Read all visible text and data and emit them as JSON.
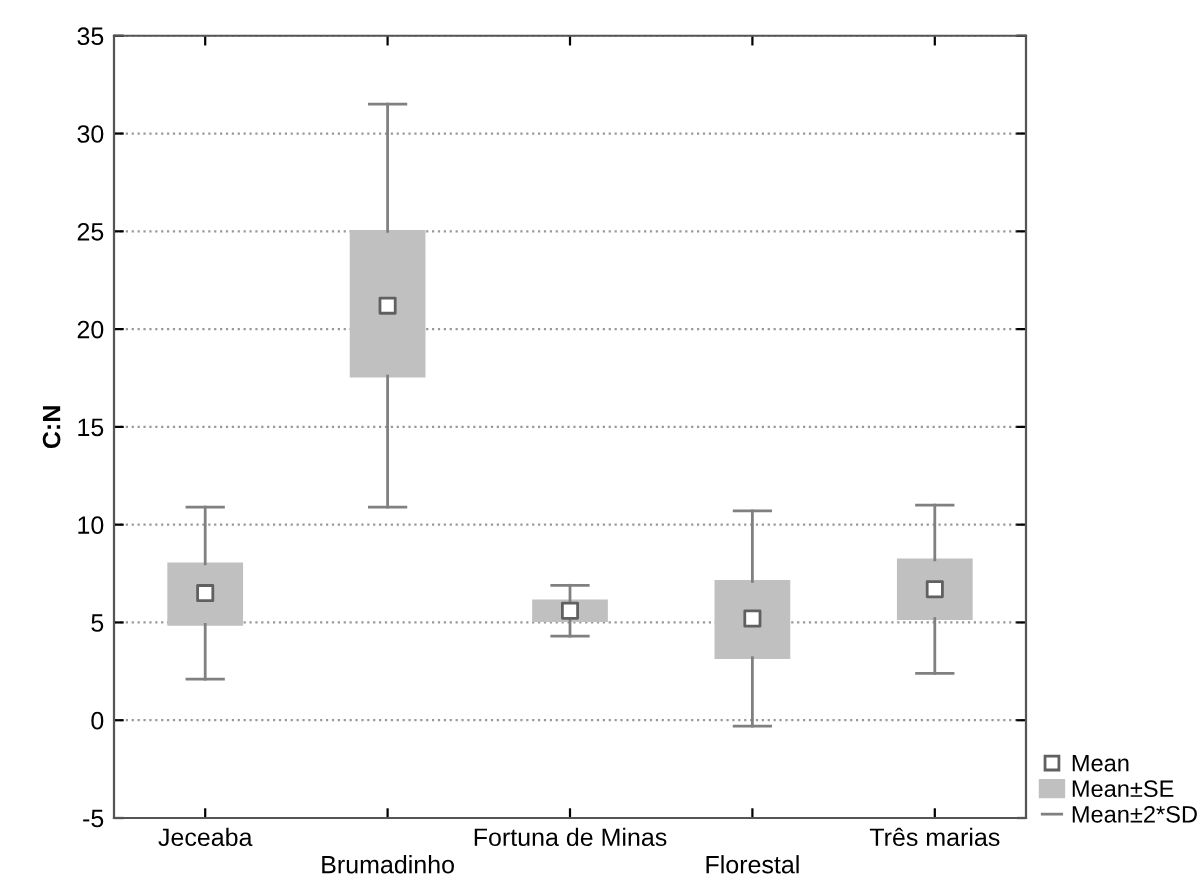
{
  "chart_data": {
    "type": "box",
    "ylabel": "C:N",
    "categories": [
      "Jeceaba",
      "Brumadinho",
      "Fortuna de Minas",
      "Florestal",
      "Três marias"
    ],
    "boxes": [
      {
        "low": 2.1,
        "q1": 4.9,
        "q3": 8.0,
        "high": 10.9,
        "mean": 6.5
      },
      {
        "low": 10.9,
        "q1": 17.6,
        "q3": 25.0,
        "high": 31.5,
        "mean": 21.2
      },
      {
        "low": 4.3,
        "q1": 5.1,
        "q3": 6.1,
        "high": 6.9,
        "mean": 5.6
      },
      {
        "low": -0.3,
        "q1": 3.2,
        "q3": 7.1,
        "high": 10.7,
        "mean": 5.2
      },
      {
        "low": 2.4,
        "q1": 5.2,
        "q3": 8.2,
        "high": 11.0,
        "mean": 6.7
      }
    ],
    "color": "#c0c0c0",
    "ylim": [
      -5,
      35
    ],
    "yticks": [
      -5,
      0,
      5,
      10,
      15,
      20,
      25,
      30,
      35
    ],
    "grid": "y",
    "annotations": [
      "Mean",
      "Mean±SE",
      "Mean±2*SD"
    ]
  }
}
